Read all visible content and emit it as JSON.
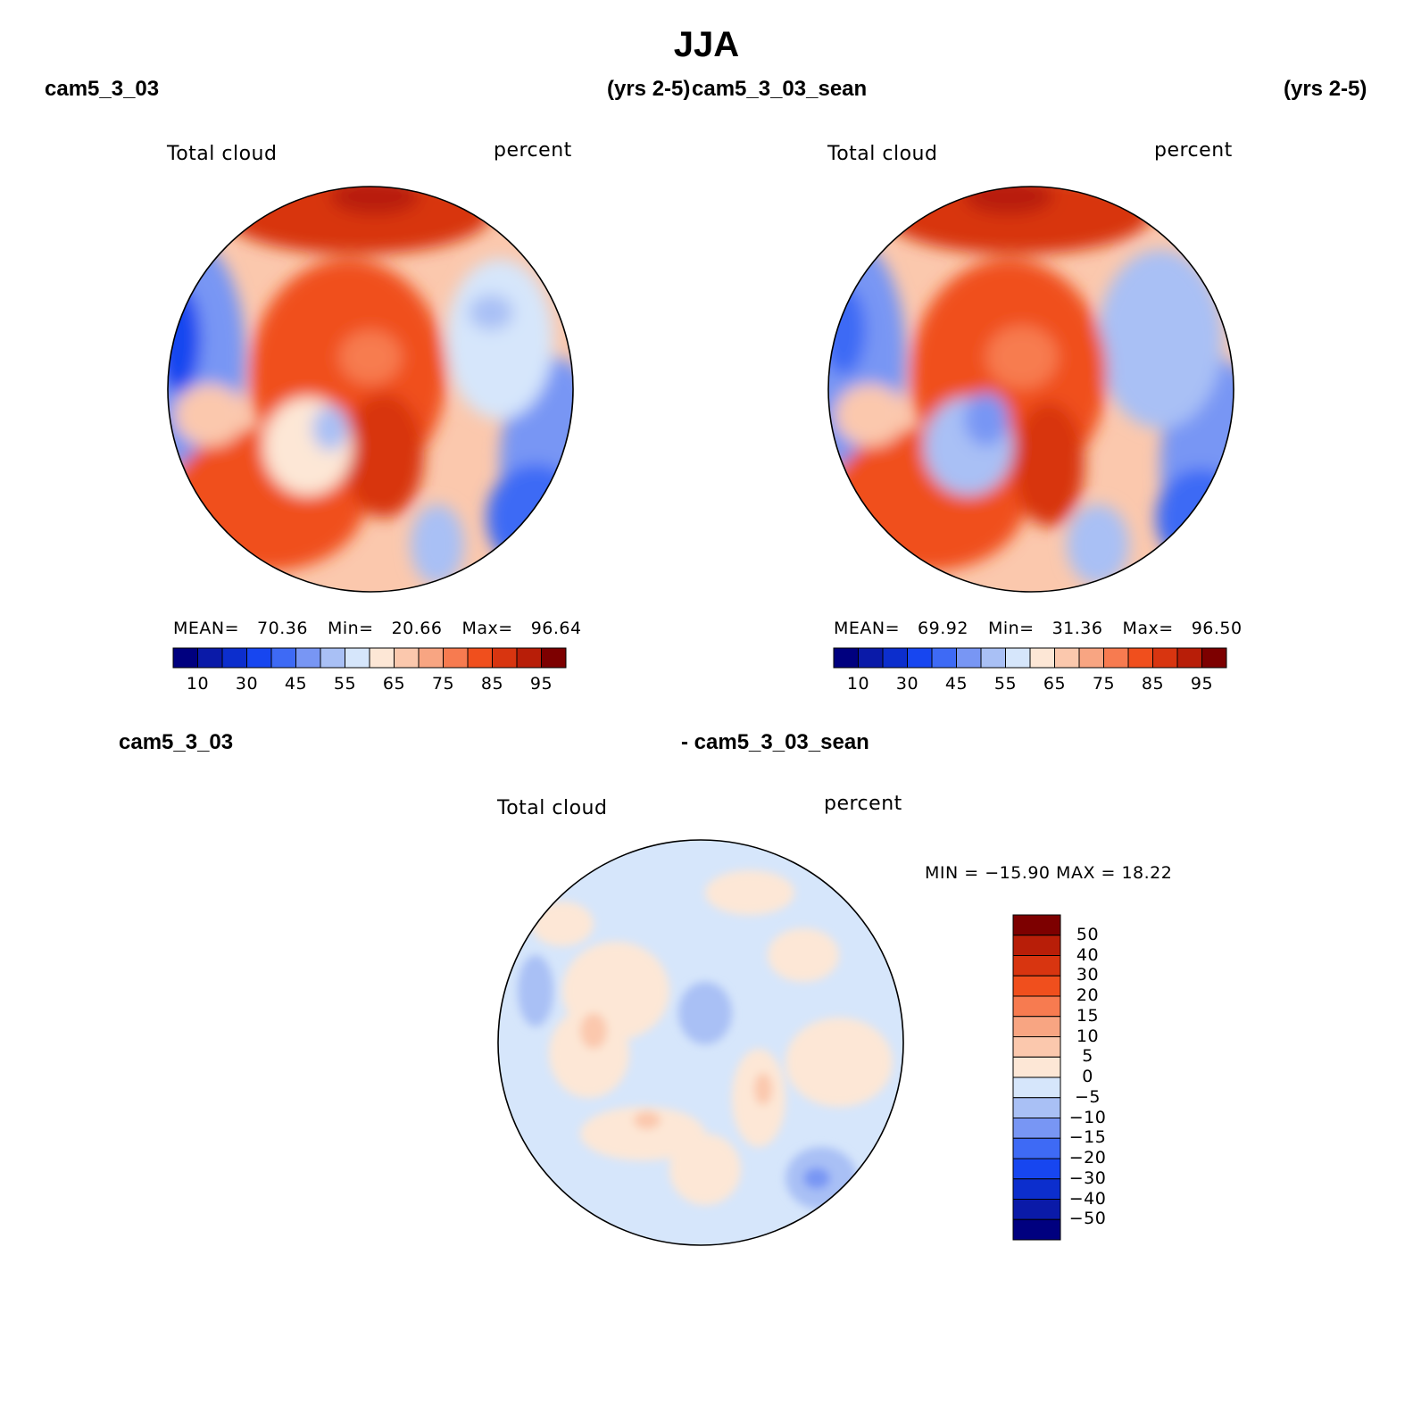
{
  "figure": {
    "title": "JJA",
    "top_left_label": "cam5_3_03",
    "top_left_years": "(yrs 2-5)",
    "top_right_label": "cam5_3_03_sean",
    "top_right_years": "(yrs 2-5)",
    "diff_label_left": "cam5_3_03",
    "diff_label_right": "- cam5_3_03_sean"
  },
  "panels": [
    {
      "variable": "Total cloud",
      "units": "percent",
      "mean_label": "MEAN=",
      "mean_value": "70.36",
      "min_label": "Min=",
      "min_value": "20.66",
      "max_label": "Max=",
      "max_value": "96.64"
    },
    {
      "variable": "Total cloud",
      "units": "percent",
      "mean_label": "MEAN=",
      "mean_value": "69.92",
      "min_label": "Min=",
      "min_value": "31.36",
      "max_label": "Max=",
      "max_value": "96.50"
    },
    {
      "variable": "Total cloud",
      "units": "percent",
      "minmax_text": "MIN = −15.90 MAX =   18.22"
    }
  ],
  "colorbar_abs": {
    "colors": [
      "#00007f",
      "#0a1aa8",
      "#0c2ecd",
      "#1746f0",
      "#3e6af5",
      "#7896f4",
      "#a9c0f5",
      "#d6e6fb",
      "#fde7d6",
      "#fbc8ad",
      "#f8a582",
      "#f77b50",
      "#f04f1d",
      "#d83510",
      "#b81e08",
      "#7d0000"
    ],
    "tick_labels": [
      "10",
      "30",
      "45",
      "55",
      "65",
      "75",
      "85",
      "95"
    ]
  },
  "colorbar_diff": {
    "colors": [
      "#7d0000",
      "#b81e08",
      "#d83510",
      "#f04f1d",
      "#f77b50",
      "#f8a582",
      "#fbc8ad",
      "#fde7d6",
      "#d6e6fb",
      "#a9c0f5",
      "#7896f4",
      "#3e6af5",
      "#1746f0",
      "#0c2ecd",
      "#0a1aa8",
      "#00007f"
    ],
    "tick_labels": [
      "50",
      "40",
      "30",
      "20",
      "15",
      "10",
      "5",
      "0",
      "−5",
      "−10",
      "−15",
      "−20",
      "−30",
      "−40",
      "−50"
    ]
  },
  "chart_data": [
    {
      "type": "heatmap",
      "projection": "north polar stereographic",
      "title": "Total cloud",
      "units": "percent",
      "levels": [
        10,
        20,
        30,
        40,
        45,
        50,
        55,
        60,
        65,
        70,
        75,
        80,
        85,
        90,
        95
      ],
      "mean": 70.36,
      "min": 20.66,
      "max": 96.64
    },
    {
      "type": "heatmap",
      "projection": "north polar stereographic",
      "title": "Total cloud",
      "units": "percent",
      "levels": [
        10,
        20,
        30,
        40,
        45,
        50,
        55,
        60,
        65,
        70,
        75,
        80,
        85,
        90,
        95
      ],
      "mean": 69.92,
      "min": 31.36,
      "max": 96.5
    },
    {
      "type": "heatmap",
      "projection": "north polar stereographic",
      "title": "Total cloud",
      "units": "percent",
      "levels": [
        -50,
        -40,
        -30,
        -20,
        -15,
        -10,
        -5,
        0,
        5,
        10,
        15,
        20,
        30,
        40,
        50
      ],
      "min": -15.9,
      "max": 18.22
    }
  ]
}
